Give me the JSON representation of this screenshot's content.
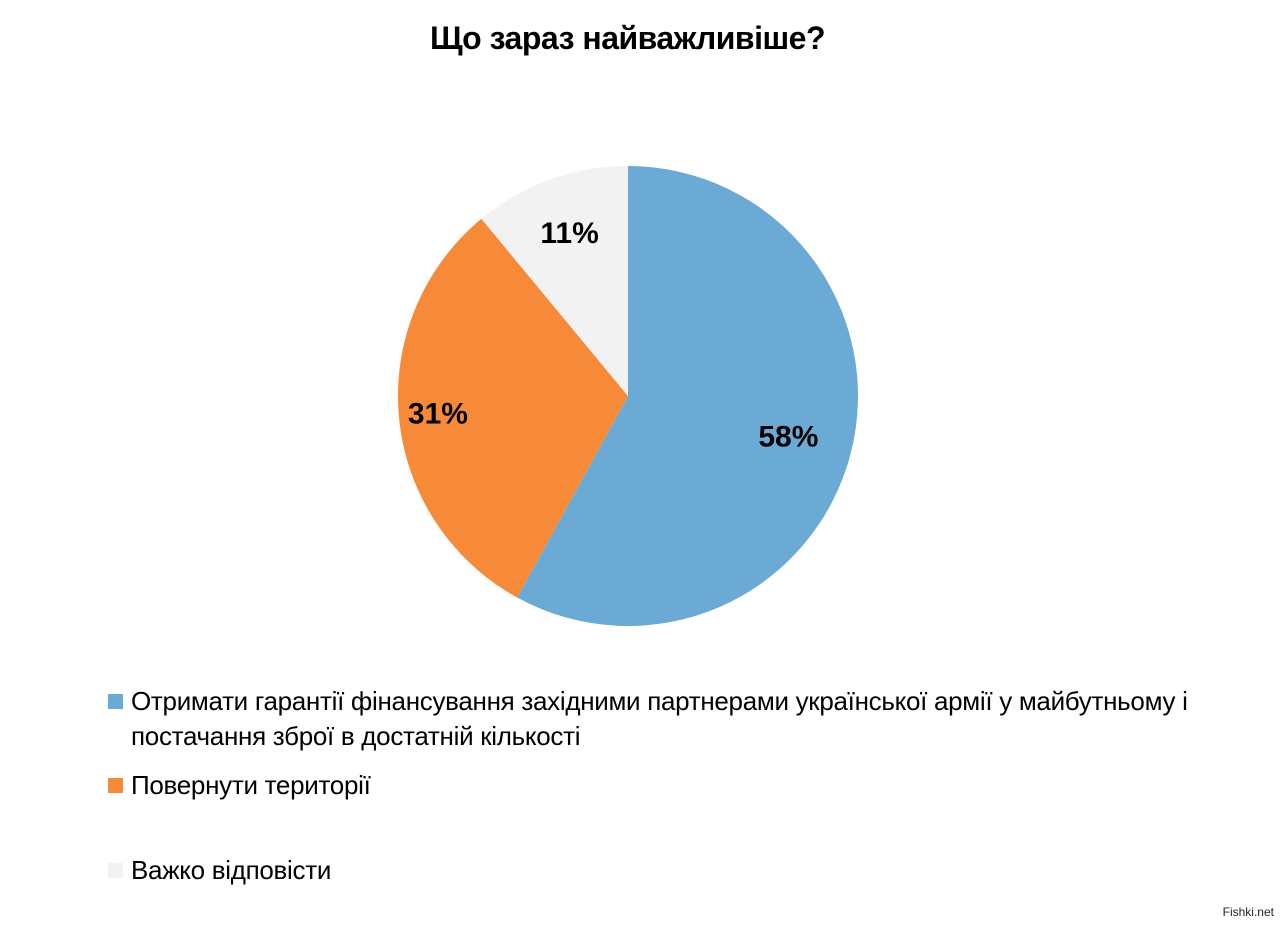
{
  "chart_data": {
    "type": "pie",
    "title": "Що зараз найважливіше?",
    "start_angle_deg": 0,
    "direction": "clockwise",
    "legend_position": "bottom",
    "slices": [
      {
        "label": "Отримати гарантії фінансування західними партнерами української армії у майбутньому і постачання зброї в достатній кількості",
        "value": 58,
        "value_label": "58%",
        "color": "#6aaad4"
      },
      {
        "label": "Повернути території",
        "value": 31,
        "value_label": "31%",
        "color": "#f78a38"
      },
      {
        "label": "Важко відповісти",
        "value": 11,
        "value_label": "11%",
        "color": "#f2f2f2"
      }
    ]
  },
  "watermark": "Fishki.net"
}
